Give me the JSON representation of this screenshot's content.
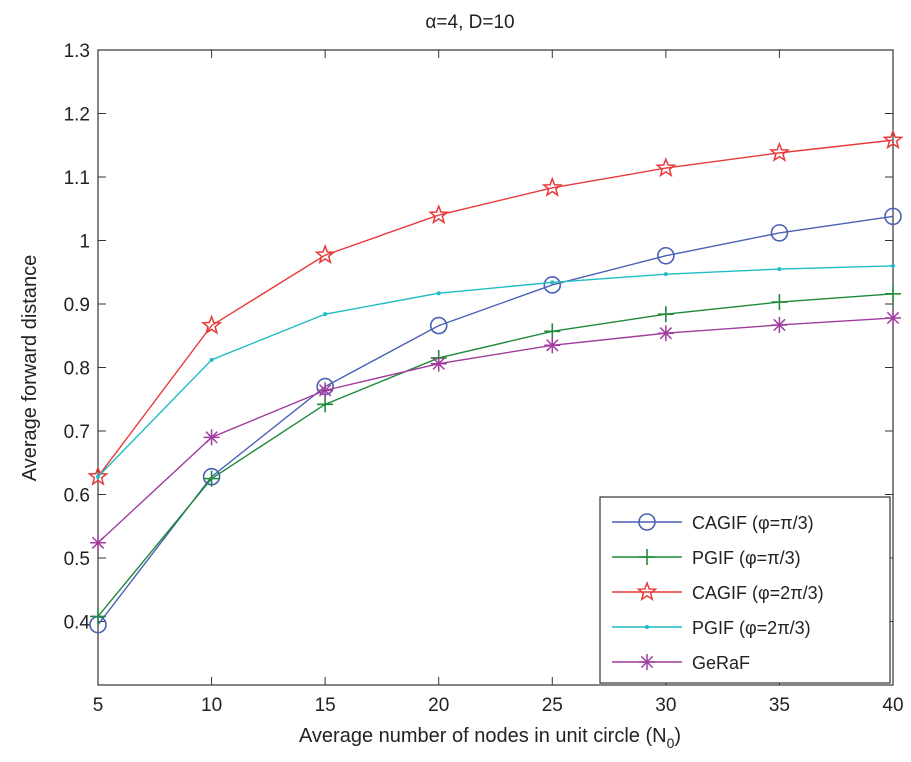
{
  "chart_data": {
    "type": "line",
    "title": "α=4, D=10",
    "xlabel": "Average number of nodes in unit circle (N",
    "xlabel_sub": "0",
    "xlabel_close": ")",
    "ylabel": "Average forward distance",
    "xlim": [
      5,
      40
    ],
    "ylim": [
      0.3,
      1.3
    ],
    "xticks": [
      5,
      10,
      15,
      20,
      25,
      30,
      35,
      40
    ],
    "yticks": [
      0.4,
      0.5,
      0.6,
      0.7,
      0.8,
      0.9,
      1.0,
      1.1,
      1.2,
      1.3
    ],
    "ytick_labels": [
      "0.4",
      "0.5",
      "0.6",
      "0.7",
      "0.8",
      "0.9",
      "1",
      "1.1",
      "1.2",
      "1.3"
    ],
    "grid": false,
    "legend_position": "bottom-right",
    "x": [
      5,
      10,
      15,
      20,
      25,
      30,
      35,
      40
    ],
    "series": [
      {
        "name": "CAGIF (φ=π/3)",
        "color": "#4a5fb5",
        "marker": "circle",
        "values": [
          0.395,
          0.628,
          0.77,
          0.866,
          0.93,
          0.976,
          1.012,
          1.038
        ]
      },
      {
        "name": "PGIF (φ=π/3)",
        "color": "#1f8a3a",
        "marker": "plus",
        "values": [
          0.408,
          0.625,
          0.742,
          0.815,
          0.857,
          0.884,
          0.903,
          0.916
        ]
      },
      {
        "name": "CAGIF (φ=2π/3)",
        "color": "#e83a3a",
        "marker": "star",
        "values": [
          0.628,
          0.866,
          0.977,
          1.04,
          1.083,
          1.114,
          1.138,
          1.158
        ]
      },
      {
        "name": "PGIF (φ=2π/3)",
        "color": "#1fbcc4",
        "marker": "dot",
        "values": [
          0.628,
          0.812,
          0.884,
          0.917,
          0.934,
          0.947,
          0.955,
          0.96
        ]
      },
      {
        "name": "GeRaF",
        "color": "#a03c9e",
        "marker": "asterisk",
        "values": [
          0.524,
          0.69,
          0.764,
          0.806,
          0.835,
          0.854,
          0.867,
          0.878
        ]
      }
    ]
  }
}
